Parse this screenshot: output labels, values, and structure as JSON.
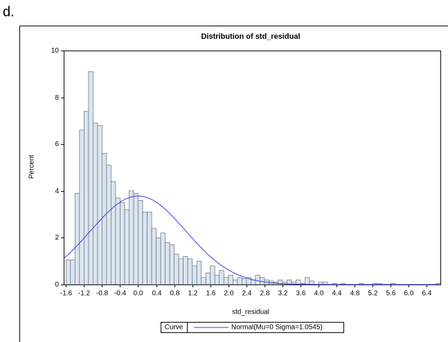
{
  "header": {
    "label": "d."
  },
  "chart_data": {
    "type": "histogram",
    "title": "Distribution of std_residual",
    "x_label": "std_residual",
    "y_label": "Percent",
    "bins": [
      -1.6,
      -1.5,
      -1.4,
      -1.3,
      -1.2,
      -1.1,
      -1.0,
      -0.9,
      -0.8,
      -0.7,
      -0.6,
      -0.5,
      -0.4,
      -0.3,
      -0.2,
      -0.1,
      0,
      0.1,
      0.2,
      0.3,
      0.4,
      0.5,
      0.6,
      0.7,
      0.8,
      0.9,
      1.0,
      1.1,
      1.2,
      1.3,
      1.4,
      1.5,
      1.6,
      1.7,
      1.8,
      1.9,
      2.0,
      2.1,
      2.2,
      2.3,
      2.4,
      2.5,
      2.6,
      2.7,
      2.8,
      2.9,
      3.0,
      3.1,
      3.2,
      3.3,
      3.4,
      3.5,
      3.6,
      3.7,
      3.8,
      3.9,
      4.0,
      4.1,
      4.2,
      4.3,
      4.4,
      4.5,
      4.6,
      4.7,
      4.8,
      4.9,
      5.0,
      5.1,
      5.2,
      5.3,
      5.4,
      5.5,
      5.6,
      5.7,
      5.8,
      5.9,
      6.0,
      6.1,
      6.2,
      6.3,
      6.4,
      6.5,
      6.6,
      6.7
    ],
    "values": [
      1.05,
      1.05,
      3.9,
      6.6,
      7.4,
      9.1,
      6.9,
      6.8,
      5.6,
      5.1,
      4.4,
      3.7,
      3.5,
      3.2,
      4.0,
      3.9,
      3.6,
      3.1,
      3.1,
      2.4,
      2.0,
      2.2,
      1.8,
      1.7,
      1.3,
      1.1,
      1.2,
      1.1,
      0.8,
      1.0,
      0.3,
      0.5,
      0.8,
      0.4,
      0.6,
      0.3,
      0.4,
      0.2,
      0.3,
      0.25,
      0.3,
      0.2,
      0.4,
      0.3,
      0.2,
      0.15,
      0.1,
      0.2,
      0.1,
      0.2,
      0.1,
      0.2,
      0.05,
      0.3,
      0.15,
      0,
      0.1,
      0.1,
      0,
      0.05,
      0,
      0.05,
      0,
      0,
      0,
      0.05,
      0,
      0,
      0.05,
      0.05,
      0,
      0,
      0.05,
      0,
      0,
      0,
      0,
      0,
      0,
      0,
      0,
      0,
      0.05
    ],
    "color": "#dce5ef",
    "edge_color": "#5f6f7f",
    "curve": {
      "mu": 0,
      "sigma": 1.0545,
      "color": "#3a3adf"
    },
    "legend": {
      "title": "Curve",
      "label": "Normal(Mu=0 Sigma=1.0545)"
    },
    "xlim": [
      -1.65,
      6.7
    ],
    "xticks": [
      -1.6,
      -1.2,
      -0.8,
      -0.4,
      {
        "value": 0,
        "label": "0.0"
      },
      0.4,
      0.8,
      1.2,
      1.6,
      {
        "value": 2,
        "label": "2.0"
      },
      2.4,
      2.8,
      3.2,
      3.6,
      {
        "value": 4,
        "label": "4.0"
      },
      4.4,
      4.8,
      5.2,
      5.6,
      {
        "value": 6,
        "label": "6.0"
      },
      6.4
    ],
    "ylim": [
      0,
      10
    ],
    "yticks": [
      0,
      2,
      4,
      6,
      8,
      10
    ]
  }
}
